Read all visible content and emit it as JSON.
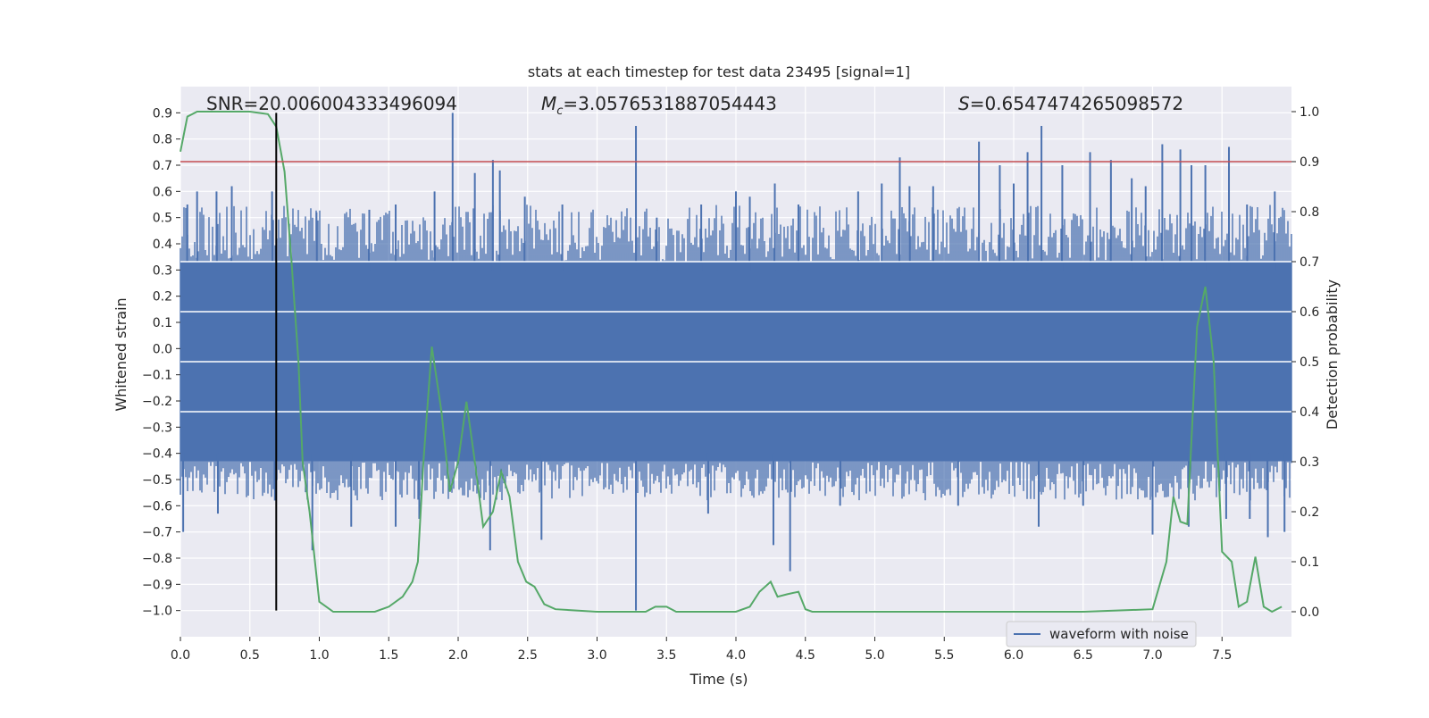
{
  "chart_data": {
    "type": "line",
    "title": "stats at each timestep for test data 23495 [signal=1]",
    "xlabel": "Time (s)",
    "ylabel": "Whitened strain",
    "y2label": "Detection probability",
    "xlim": [
      0.0,
      8.0
    ],
    "ylim": [
      -1.1,
      1.0
    ],
    "y2lim": [
      -0.05,
      1.05
    ],
    "x_ticks": [
      "0.0",
      "0.5",
      "1.0",
      "1.5",
      "2.0",
      "2.5",
      "3.0",
      "3.5",
      "4.0",
      "4.5",
      "5.0",
      "5.5",
      "6.0",
      "6.5",
      "7.0",
      "7.5"
    ],
    "y_ticks": [
      "0.9",
      "0.8",
      "0.7",
      "0.6",
      "0.5",
      "0.4",
      "0.3",
      "0.2",
      "0.1",
      "0.0",
      "−0.1",
      "−0.2",
      "−0.3",
      "−0.4",
      "−0.5",
      "−0.6",
      "−0.7",
      "−0.8",
      "−0.9",
      "−1.0"
    ],
    "y2_ticks": [
      "1.0",
      "0.9",
      "0.8",
      "0.7",
      "0.6",
      "0.5",
      "0.4",
      "0.3",
      "0.2",
      "0.1",
      "0.0"
    ],
    "grid": true,
    "legend_position": "lower-right",
    "annotations": {
      "snr": "SNR=20.006004333496094",
      "mc_symbol": "M",
      "mc_sub": "c",
      "mc_value": "=3.0576531887054443",
      "s_symbol": "S",
      "s_value": "=0.6547474265098572"
    },
    "threshold_y2": 0.9,
    "vline": {
      "x": 0.69,
      "y_from": -1.0,
      "y_to": 0.9
    },
    "series": [
      {
        "name": "waveform with noise",
        "color": "#4c72b0",
        "band_core": [
          -0.43,
          0.33
        ],
        "peaks_up": [
          [
            0.05,
            0.55
          ],
          [
            0.12,
            0.6
          ],
          [
            0.26,
            0.6
          ],
          [
            0.37,
            0.62
          ],
          [
            0.66,
            0.6
          ],
          [
            0.98,
            0.52
          ],
          [
            1.36,
            0.53
          ],
          [
            1.55,
            0.55
          ],
          [
            1.83,
            0.6
          ],
          [
            1.96,
            0.9
          ],
          [
            2.12,
            0.67
          ],
          [
            2.25,
            0.72
          ],
          [
            2.3,
            0.68
          ],
          [
            2.48,
            0.58
          ],
          [
            2.75,
            0.55
          ],
          [
            3.28,
            0.85
          ],
          [
            3.43,
            0.5
          ],
          [
            3.75,
            0.55
          ],
          [
            4.0,
            0.6
          ],
          [
            4.1,
            0.58
          ],
          [
            4.28,
            0.63
          ],
          [
            4.45,
            0.55
          ],
          [
            4.88,
            0.6
          ],
          [
            5.05,
            0.63
          ],
          [
            5.18,
            0.73
          ],
          [
            5.25,
            0.62
          ],
          [
            5.42,
            0.62
          ],
          [
            5.75,
            0.79
          ],
          [
            5.9,
            0.7
          ],
          [
            6.0,
            0.63
          ],
          [
            6.1,
            0.75
          ],
          [
            6.2,
            0.85
          ],
          [
            6.35,
            0.7
          ],
          [
            6.55,
            0.75
          ],
          [
            6.7,
            0.72
          ],
          [
            6.85,
            0.65
          ],
          [
            6.95,
            0.62
          ],
          [
            7.07,
            0.78
          ],
          [
            7.2,
            0.76
          ],
          [
            7.28,
            0.7
          ],
          [
            7.38,
            0.7
          ],
          [
            7.55,
            0.77
          ],
          [
            7.68,
            0.55
          ],
          [
            7.88,
            0.6
          ]
        ],
        "peaks_down": [
          [
            0.02,
            -0.7
          ],
          [
            0.27,
            -0.63
          ],
          [
            0.68,
            -0.58
          ],
          [
            0.95,
            -0.77
          ],
          [
            1.23,
            -0.68
          ],
          [
            1.55,
            -0.68
          ],
          [
            1.72,
            -0.65
          ],
          [
            2.23,
            -0.77
          ],
          [
            2.6,
            -0.73
          ],
          [
            3.28,
            -1.0
          ],
          [
            3.8,
            -0.63
          ],
          [
            4.27,
            -0.75
          ],
          [
            4.39,
            -0.85
          ],
          [
            4.75,
            -0.6
          ],
          [
            5.6,
            -0.6
          ],
          [
            6.18,
            -0.68
          ],
          [
            6.5,
            -0.6
          ],
          [
            7.0,
            -0.71
          ],
          [
            7.26,
            -0.68
          ],
          [
            7.53,
            -0.65
          ],
          [
            7.7,
            -0.65
          ],
          [
            7.83,
            -0.72
          ],
          [
            7.95,
            -0.7
          ]
        ]
      },
      {
        "name": "",
        "color": "#55a868",
        "axis": "right",
        "x": [
          0.0,
          0.05,
          0.12,
          0.3,
          0.5,
          0.63,
          0.69,
          0.75,
          0.8,
          0.85,
          0.88,
          0.93,
          1.0,
          1.1,
          1.3,
          1.4,
          1.5,
          1.6,
          1.67,
          1.71,
          1.75,
          1.81,
          1.88,
          1.94,
          2.0,
          2.06,
          2.12,
          2.18,
          2.25,
          2.31,
          2.37,
          2.43,
          2.49,
          2.55,
          2.62,
          2.7,
          3.0,
          3.2,
          3.3,
          3.35,
          3.42,
          3.5,
          3.57,
          3.8,
          4.0,
          4.1,
          4.17,
          4.25,
          4.3,
          4.37,
          4.45,
          4.5,
          4.55,
          4.62,
          5.0,
          6.0,
          6.5,
          7.0,
          7.1,
          7.15,
          7.2,
          7.25,
          7.32,
          7.38,
          7.44,
          7.5,
          7.57,
          7.62,
          7.68,
          7.74,
          7.8,
          7.86,
          7.93
        ],
        "y": [
          0.92,
          0.99,
          1.0,
          1.0,
          1.0,
          0.995,
          0.97,
          0.88,
          0.7,
          0.5,
          0.3,
          0.2,
          0.02,
          0.0,
          0.0,
          0.0,
          0.01,
          0.03,
          0.06,
          0.1,
          0.3,
          0.53,
          0.4,
          0.24,
          0.3,
          0.42,
          0.3,
          0.17,
          0.2,
          0.28,
          0.23,
          0.1,
          0.06,
          0.05,
          0.015,
          0.005,
          0.0,
          0.0,
          0.0,
          0.0,
          0.01,
          0.01,
          0.0,
          0.0,
          0.0,
          0.01,
          0.04,
          0.06,
          0.03,
          0.035,
          0.04,
          0.005,
          0.0,
          0.0,
          0.0,
          0.0,
          0.0,
          0.005,
          0.1,
          0.23,
          0.18,
          0.175,
          0.57,
          0.65,
          0.5,
          0.12,
          0.1,
          0.01,
          0.02,
          0.11,
          0.01,
          0.0,
          0.01
        ]
      }
    ]
  }
}
